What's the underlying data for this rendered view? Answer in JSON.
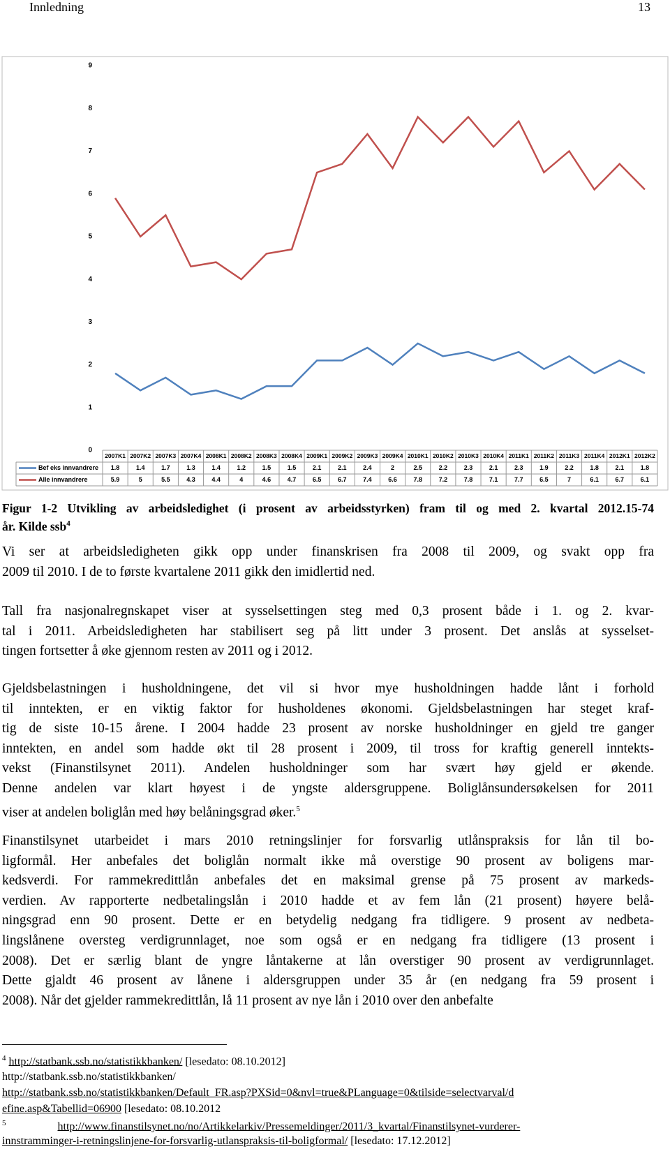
{
  "header": {
    "section": "Innledning",
    "page": "13"
  },
  "chart_data": {
    "type": "line",
    "categories": [
      "2007K1",
      "2007K2",
      "2007K3",
      "2007K4",
      "2008K1",
      "2008K2",
      "2008K3",
      "2008K4",
      "2009K1",
      "2009K2",
      "2009K3",
      "2009K4",
      "2010K1",
      "2010K2",
      "2010K3",
      "2010K4",
      "2011K1",
      "2011K2",
      "2011K3",
      "2011K4",
      "2012K1",
      "2012K2"
    ],
    "series": [
      {
        "name": "Bef eks innvandrere",
        "color": "#4f81bd",
        "values": [
          1.8,
          1.4,
          1.7,
          1.3,
          1.4,
          1.2,
          1.5,
          1.5,
          2.1,
          2.1,
          2.4,
          2,
          2.5,
          2.2,
          2.3,
          2.1,
          2.3,
          1.9,
          2.2,
          1.8,
          2.1,
          1.8
        ]
      },
      {
        "name": "Alle innvandrere",
        "color": "#c0504d",
        "values": [
          5.9,
          5,
          5.5,
          4.3,
          4.4,
          4,
          4.6,
          4.7,
          6.5,
          6.7,
          7.4,
          6.6,
          7.8,
          7.2,
          7.8,
          7.1,
          7.7,
          6.5,
          7,
          6.1,
          6.7,
          6.1
        ]
      }
    ],
    "ylim": [
      0,
      9
    ],
    "yticks": [
      0,
      1,
      2,
      3,
      4,
      5,
      6,
      7,
      8,
      9
    ],
    "grid": false,
    "data_table": true
  },
  "caption": {
    "lines": [
      "Figur 1-2 Utvikling av arbeidsledighet (i prosent av arbeidsstyrken) fram til og med 2. kvartal 2012.15-74",
      "år. Kilde ssb"
    ],
    "note": "4"
  },
  "paragraphs": [
    {
      "lines": [
        "Vi ser at arbeidsledigheten gikk opp under finanskrisen fra 2008 til 2009, og svakt opp fra",
        "2009 til 2010. I de to første kvartalene 2011 gikk den imidlertid ned."
      ]
    },
    {
      "lines": [
        "Tall fra nasjonalregnskapet viser at sysselsettingen steg med 0,3 prosent både i 1. og 2. kvar-",
        "tal i 2011. Arbeidsledigheten har stabilisert seg på litt under 3 prosent. Det anslås at sysselset-",
        "tingen fortsetter å øke gjennom resten av 2011 og i 2012."
      ]
    },
    {
      "lines": [
        "Gjeldsbelastningen i husholdningene, det vil si hvor mye husholdningen hadde lånt i forhold",
        "til inntekten, er en viktig faktor for husholdenes økonomi. Gjeldsbelastningen har steget kraf-",
        "tig de siste 10-15 årene. I 2004 hadde 23 prosent av norske husholdninger en gjeld tre ganger",
        "inntekten, en andel som hadde økt til 28 prosent i 2009, til tross for kraftig generell inntekts-",
        "vekst (Finanstilsynet 2011).  Andelen husholdninger som har svært høy gjeld er økende.",
        "Denne andelen var klart høyest i de yngste aldersgruppene. Boliglånsundersøkelsen for 2011",
        "viser at andelen boliglån med høy belåningsgrad øker."
      ],
      "note": "5"
    },
    {
      "lines": [
        "Finanstilsynet utarbeidet i mars 2010 retningslinjer for forsvarlig utlånspraksis for lån til bo-",
        "ligformål. Her anbefales det boliglån normalt ikke må overstige 90 prosent av boligens mar-",
        "kedsverdi. For rammekredittlån anbefales det en maksimal grense på 75 prosent av markeds-",
        "verdien. Av rapporterte nedbetalingslån i 2010 hadde et av fem lån (21 prosent) høyere belå-",
        "ningsgrad enn 90 prosent. Dette er en betydelig nedgang fra tidligere. 9 prosent av nedbeta-",
        "lingslånene oversteg verdigrunnlaget, noe som også er en nedgang fra tidligere (13 prosent i",
        "2008). Det er særlig blant de yngre låntakerne at lån overstiger 90 prosent av verdigrunnlaget.",
        "Dette gjaldt 46 prosent av lånene i aldersgruppen under 35 år (en nedgang fra 59 prosent i",
        "2008). Når det gjelder rammekredittlån, lå 11 prosent av nye lån i 2010 over den anbefalte"
      ]
    }
  ],
  "footnotes": [
    {
      "number": "4",
      "link": "http://statbank.ssb.no/statistikkbanken/",
      "date": "[lesedato: 08.10.2012]",
      "extra": "http://statbank.ssb.no/statistikkbanken/",
      "link2": [
        "http://statbank.ssb.no/statistikkbanken/Default_FR.asp?PXSid=0&nvl=true&PLanguage=0&tilside=selectvarval/d",
        "efine.asp&Tabellid=06900"
      ],
      "date2": "[lesedato: 08.10.2012"
    },
    {
      "number": "5",
      "link": [
        "http://www.finanstilsynet.no/no/Artikkelarkiv/Pressemeldinger/2011/3_kvartal/Finanstilsynet-vurderer-",
        "innstramminger-i-retningslinjene-for-forsvarlig-utlanspraksis-til-boligformal/"
      ],
      "date": "[lesedato: 17.12.2012]"
    }
  ]
}
